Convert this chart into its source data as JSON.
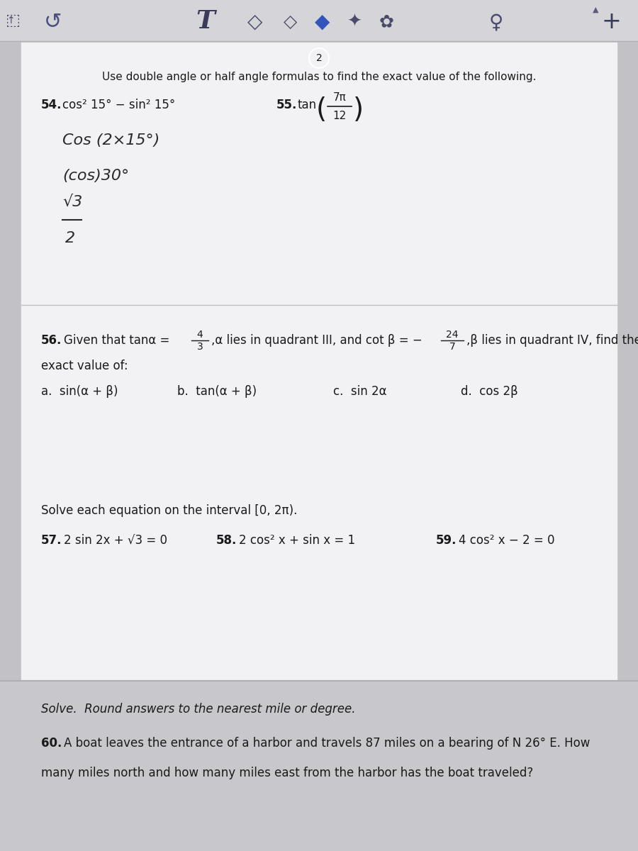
{
  "toolbar_bg": "#d8d8dc",
  "page_bg": "#e8e8ec",
  "white_area_bg": "#f0f0f2",
  "lower_area_bg": "#d0d0d4",
  "text_color": "#1a1a1a",
  "title_text": "Use double angle or half angle formulas to find the exact value of the following.",
  "q54_text": "cos² 15° − sin² 15°",
  "q55_frac_num": "7π",
  "q55_frac_den": "12",
  "hw1": "Cos (2×15°)",
  "hw2": "(cos)30°",
  "hw3": "√3",
  "hw3b": "2",
  "q56_pre": "56.  Given that tanα =",
  "q56_f1n": "4",
  "q56_f1d": "3",
  "q56_mid": ",α lies in quadrant III, and cot β = −",
  "q56_f2n": "24",
  "q56_f2d": "7",
  "q56_post": ",β lies in quadrant IV, find the",
  "q56_exact": "exact value of:",
  "q56a": "a.  sin(α + β)",
  "q56b": "b.  tan(α + β)",
  "q56c": "c.  sin 2α",
  "q56d": "d.  cos 2β",
  "solve_hdr": "Solve each equation on the interval [0, 2π).",
  "q57": "2 sin 2x + √3 = 0",
  "q58": "2 cos² x + sin x = 1",
  "q59": "4 cos² x − 2 = 0",
  "solve2_hdr": "Solve.  Round answers to the nearest mile or degree.",
  "q60": "A boat leaves the entrance of a harbor and travels 87 miles on a bearing of N 26° E. How\nmany miles north and how many miles east from the harbor has the boat traveled?"
}
